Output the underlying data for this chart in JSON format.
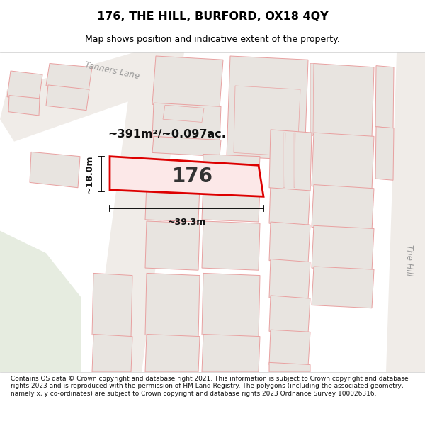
{
  "title": "176, THE HILL, BURFORD, OX18 4QY",
  "subtitle": "Map shows position and indicative extent of the property.",
  "footer": "Contains OS data © Crown copyright and database right 2021. This information is subject to Crown copyright and database rights 2023 and is reproduced with the permission of HM Land Registry. The polygons (including the associated geometry, namely x, y co-ordinates) are subject to Crown copyright and database rights 2023 Ordnance Survey 100026316.",
  "map_bg": "#f8f6f3",
  "building_fill": "#e8e4e0",
  "building_edge": "#e8a0a0",
  "highlight_color": "#dd0000",
  "highlight_fill": "#fce8e8",
  "green_area": "#e6ece0",
  "road_fill": "#f0ece8",
  "street_label_color": "#999999",
  "title_color": "#000000",
  "area_label": "~391m²/~0.097ac.",
  "width_label": "~39.3m",
  "height_label": "~18.0m",
  "property_number": "176",
  "road_label_1": "Tanners Lane",
  "road_label_2": "The Hill"
}
